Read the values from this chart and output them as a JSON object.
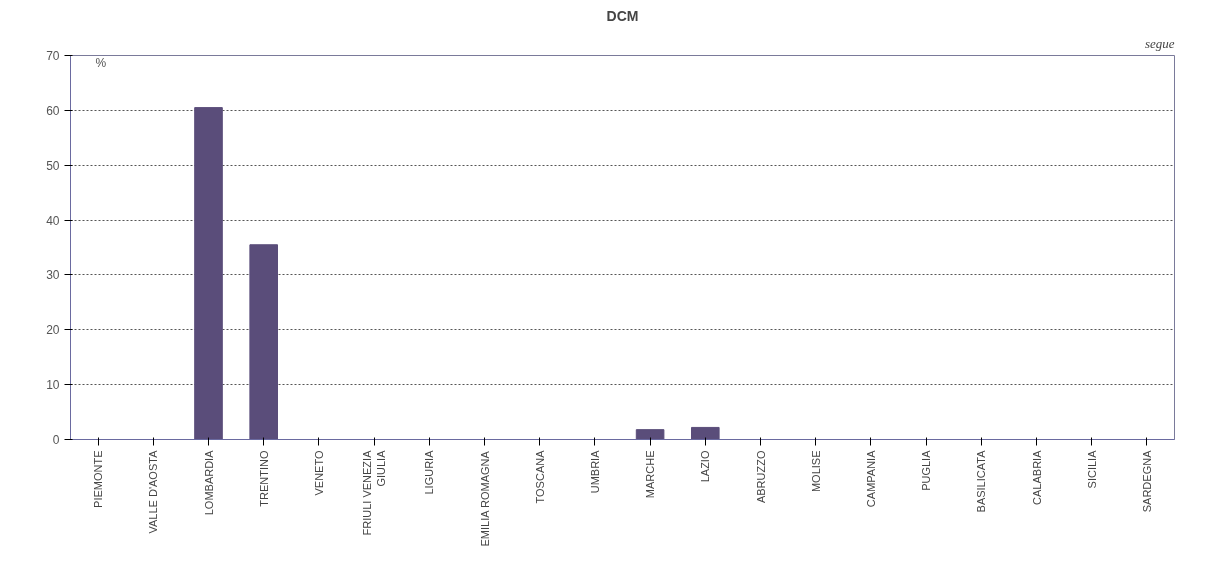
{
  "chart_data": {
    "type": "bar",
    "title": "DCM",
    "ylabel": "%",
    "categories": [
      "PIEMONTE",
      "VALLE D'AOSTA",
      "LOMBARDIA",
      "TRENTINO",
      "VENETO",
      "FRIULI VENEZIA\nGIULIA",
      "LIGURIA",
      "EMILIA ROMAGNA",
      "TOSCANA",
      "UMBRIA",
      "MARCHE",
      "LAZIO",
      "ABRUZZO",
      "MOLISE",
      "CAMPANIA",
      "PUGLIA",
      "BASILICATA",
      "CALABRIA",
      "SICILIA",
      "SARDEGNA"
    ],
    "values": [
      0,
      0,
      60.5,
      35.5,
      0,
      0,
      0,
      0,
      0,
      0,
      1.8,
      2.2,
      0,
      0,
      0,
      0,
      0,
      0,
      0,
      0
    ],
    "color": "#5a4d7a",
    "ylim": [
      0,
      70
    ],
    "yticks": [
      0,
      10,
      20,
      30,
      40,
      50,
      60,
      70
    ],
    "grid": "y",
    "annotations": [
      "segue"
    ]
  }
}
